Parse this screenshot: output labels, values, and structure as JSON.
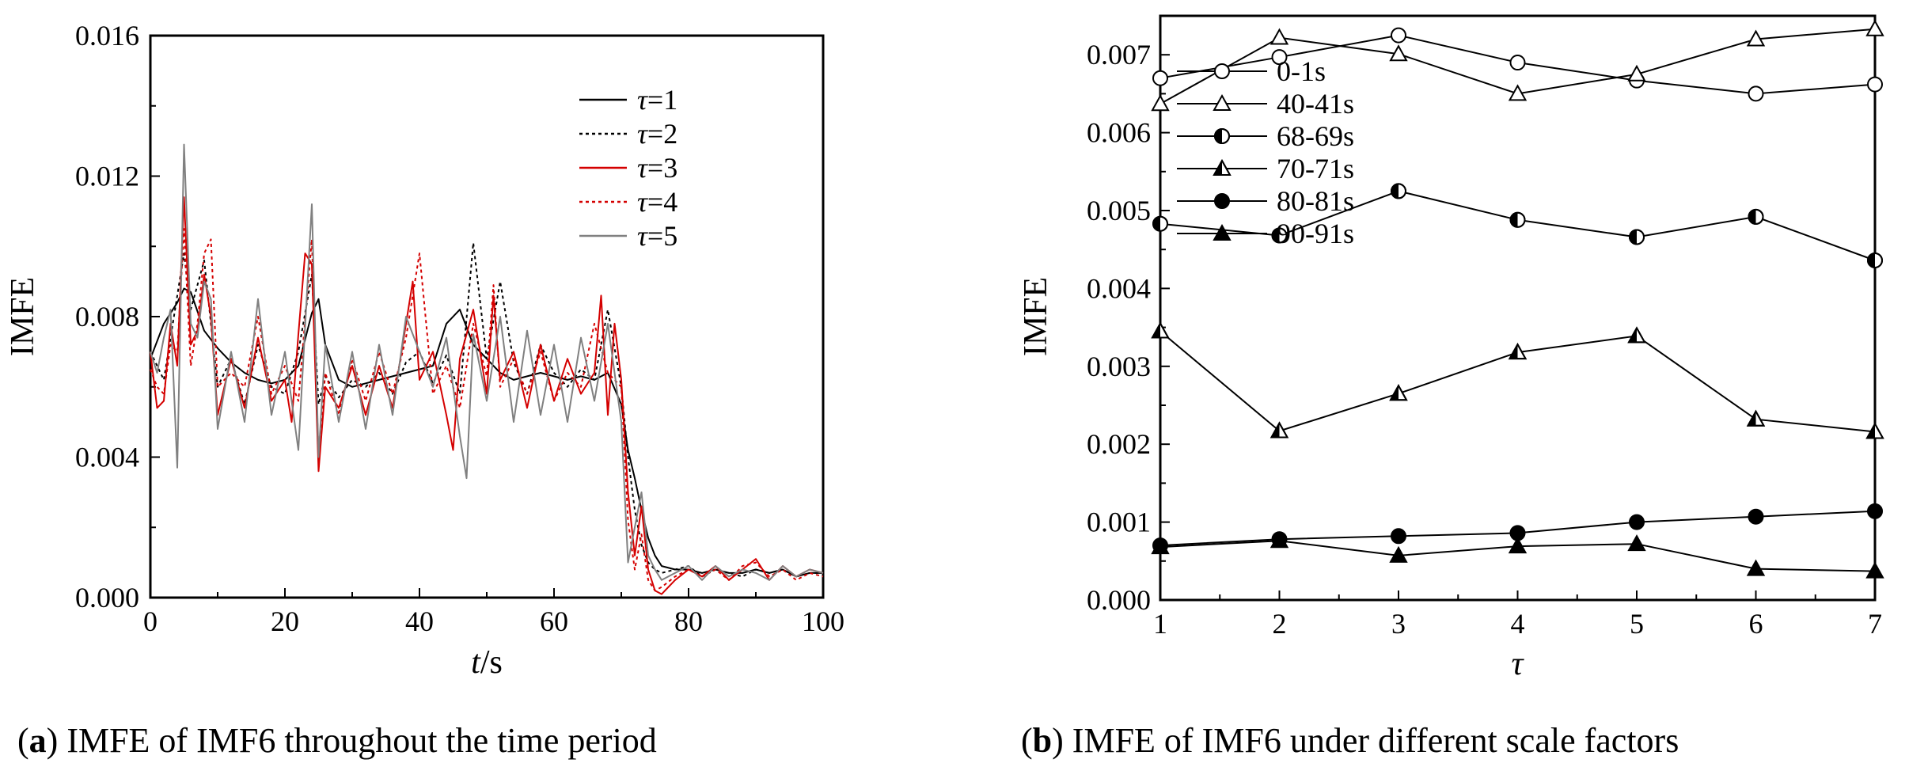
{
  "chart_data": [
    {
      "type": "line",
      "panel": "a",
      "caption_letter": "a",
      "caption_text": "IMFE of IMF6 throughout the time period",
      "ylabel": "IMFE",
      "xlabel_var": "t",
      "xlabel_unit": "/s",
      "xlim": [
        0,
        100
      ],
      "ylim": [
        0,
        0.016
      ],
      "xticks": [
        0,
        20,
        40,
        60,
        80,
        100
      ],
      "yticks": [
        0.0,
        0.004,
        0.008,
        0.012,
        0.016
      ],
      "ytick_labels": [
        "0.000",
        "0.004",
        "0.008",
        "0.012",
        "0.016"
      ],
      "legend_position": "right",
      "colors": {
        "tau1": "#000000",
        "tau2": "#000000",
        "tau3": "#d40000",
        "tau4": "#d40000",
        "tau5": "#808080"
      },
      "series": [
        {
          "name": "τ=1",
          "label_var": "τ",
          "label_val": "=1",
          "color": "#000000",
          "dash": "solid",
          "x": [
            0,
            2,
            4,
            5,
            6,
            8,
            10,
            12,
            14,
            16,
            18,
            20,
            22,
            24,
            25,
            26,
            28,
            30,
            32,
            34,
            36,
            38,
            40,
            42,
            44,
            46,
            48,
            50,
            52,
            54,
            56,
            58,
            60,
            62,
            64,
            66,
            68,
            70,
            71,
            72,
            73,
            74,
            75,
            76,
            78,
            80,
            82,
            84,
            86,
            88,
            90,
            92,
            94,
            96,
            98,
            100
          ],
          "y": [
            0.0068,
            0.0078,
            0.0084,
            0.0088,
            0.0087,
            0.0076,
            0.0071,
            0.0067,
            0.0064,
            0.0062,
            0.0061,
            0.0062,
            0.0066,
            0.0081,
            0.0085,
            0.0072,
            0.0062,
            0.006,
            0.0061,
            0.0062,
            0.0063,
            0.0064,
            0.0065,
            0.0066,
            0.0078,
            0.0082,
            0.0072,
            0.0068,
            0.0064,
            0.0062,
            0.0063,
            0.0064,
            0.0063,
            0.0062,
            0.0063,
            0.0062,
            0.0064,
            0.0055,
            0.0042,
            0.0034,
            0.0025,
            0.0017,
            0.0012,
            0.0009,
            0.0008,
            0.0008,
            0.0007,
            0.0008,
            0.0007,
            0.0007,
            0.0008,
            0.0007,
            0.0008,
            0.0006,
            0.0007,
            0.0007
          ]
        },
        {
          "name": "τ=2",
          "label_var": "τ",
          "label_val": "=2",
          "color": "#000000",
          "dash": "dotted",
          "x": [
            0,
            2,
            4,
            5,
            6,
            8,
            10,
            12,
            14,
            16,
            18,
            20,
            22,
            24,
            25,
            26,
            28,
            30,
            32,
            34,
            36,
            38,
            40,
            42,
            44,
            46,
            48,
            50,
            52,
            54,
            56,
            58,
            60,
            62,
            64,
            66,
            68,
            70,
            71,
            72,
            73,
            74,
            75,
            76,
            78,
            80,
            82,
            84,
            86,
            88,
            90,
            92,
            94,
            96,
            98,
            100
          ],
          "y": [
            0.007,
            0.0062,
            0.0086,
            0.0098,
            0.0082,
            0.0096,
            0.006,
            0.0068,
            0.0055,
            0.0072,
            0.006,
            0.0058,
            0.007,
            0.0092,
            0.0055,
            0.0063,
            0.0057,
            0.0062,
            0.006,
            0.0064,
            0.0058,
            0.0067,
            0.007,
            0.0061,
            0.0069,
            0.0058,
            0.0101,
            0.0068,
            0.009,
            0.0067,
            0.0058,
            0.0072,
            0.0064,
            0.006,
            0.0065,
            0.0062,
            0.0082,
            0.006,
            0.004,
            0.0025,
            0.0015,
            0.001,
            0.0008,
            0.0007,
            0.0008,
            0.0009,
            0.0006,
            0.0008,
            0.0007,
            0.0006,
            0.0008,
            0.0007,
            0.0008,
            0.0006,
            0.0007,
            0.0007
          ]
        },
        {
          "name": "τ=3",
          "label_var": "τ",
          "label_val": "=3",
          "color": "#d40000",
          "dash": "solid",
          "x": [
            0,
            1,
            2,
            3,
            4,
            5,
            6,
            7,
            8,
            9,
            10,
            12,
            14,
            16,
            18,
            20,
            21,
            22,
            23,
            24,
            25,
            26,
            28,
            30,
            32,
            34,
            36,
            38,
            39,
            40,
            42,
            44,
            45,
            46,
            48,
            50,
            51,
            52,
            54,
            56,
            58,
            60,
            62,
            64,
            66,
            67,
            68,
            69,
            70,
            71,
            72,
            73,
            74,
            75,
            76,
            78,
            80,
            82,
            84,
            86,
            88,
            90,
            92,
            94,
            96,
            98,
            100
          ],
          "y": [
            0.007,
            0.0054,
            0.0056,
            0.0078,
            0.0066,
            0.0114,
            0.0072,
            0.0076,
            0.0092,
            0.008,
            0.0052,
            0.0068,
            0.0054,
            0.0074,
            0.0056,
            0.0062,
            0.005,
            0.0075,
            0.0098,
            0.0095,
            0.0036,
            0.006,
            0.0054,
            0.0066,
            0.0052,
            0.0066,
            0.0054,
            0.0078,
            0.009,
            0.0062,
            0.007,
            0.0052,
            0.0042,
            0.0068,
            0.0082,
            0.0058,
            0.0086,
            0.0062,
            0.007,
            0.0054,
            0.0072,
            0.0056,
            0.0068,
            0.0058,
            0.0064,
            0.0086,
            0.0052,
            0.0078,
            0.0062,
            0.003,
            0.0012,
            0.0026,
            0.0008,
            0.0002,
            0.0001,
            0.0005,
            0.0008,
            0.0006,
            0.0009,
            0.0005,
            0.0008,
            0.0011,
            0.0005,
            0.0009,
            0.0006,
            0.0008,
            0.0007
          ]
        },
        {
          "name": "τ=4",
          "label_var": "τ",
          "label_val": "=4",
          "color": "#d40000",
          "dash": "dotted",
          "x": [
            0,
            1,
            2,
            3,
            4,
            5,
            6,
            7,
            8,
            9,
            10,
            12,
            14,
            16,
            18,
            20,
            22,
            24,
            25,
            26,
            28,
            30,
            32,
            34,
            36,
            38,
            40,
            42,
            44,
            46,
            48,
            50,
            51,
            52,
            54,
            56,
            58,
            60,
            62,
            64,
            66,
            68,
            70,
            71,
            72,
            73,
            74,
            75,
            76,
            78,
            80,
            82,
            84,
            86,
            88,
            90,
            92,
            94,
            96,
            98,
            100
          ],
          "y": [
            0.0065,
            0.006,
            0.0058,
            0.0072,
            0.007,
            0.0105,
            0.0066,
            0.0078,
            0.0098,
            0.0102,
            0.006,
            0.0064,
            0.006,
            0.008,
            0.0058,
            0.0066,
            0.0056,
            0.0102,
            0.004,
            0.0064,
            0.0052,
            0.0068,
            0.0056,
            0.007,
            0.0058,
            0.0074,
            0.0098,
            0.0058,
            0.0066,
            0.0054,
            0.0078,
            0.0063,
            0.0089,
            0.006,
            0.0068,
            0.0058,
            0.007,
            0.0056,
            0.0064,
            0.006,
            0.0078,
            0.0064,
            0.006,
            0.0022,
            0.0008,
            0.0018,
            0.0005,
            0.0002,
            0.0003,
            0.0006,
            0.0008,
            0.0006,
            0.0008,
            0.0005,
            0.0009,
            0.001,
            0.0006,
            0.0008,
            0.0005,
            0.0007,
            0.0006
          ]
        },
        {
          "name": "τ=5",
          "label_var": "τ",
          "label_val": "=5",
          "color": "#808080",
          "dash": "solid",
          "x": [
            0,
            1,
            2,
            3,
            4,
            5,
            6,
            7,
            8,
            9,
            10,
            12,
            14,
            16,
            18,
            20,
            22,
            24,
            25,
            26,
            28,
            30,
            32,
            34,
            36,
            38,
            40,
            42,
            44,
            46,
            47,
            48,
            50,
            52,
            54,
            56,
            58,
            60,
            62,
            64,
            66,
            68,
            70,
            71,
            72,
            73,
            74,
            75,
            76,
            78,
            80,
            82,
            84,
            86,
            88,
            90,
            92,
            94,
            96,
            98,
            100
          ],
          "y": [
            0.007,
            0.0064,
            0.0074,
            0.0082,
            0.0037,
            0.0129,
            0.0078,
            0.0074,
            0.009,
            0.0085,
            0.0048,
            0.007,
            0.005,
            0.0085,
            0.0052,
            0.007,
            0.0042,
            0.0112,
            0.004,
            0.0072,
            0.005,
            0.007,
            0.0048,
            0.0072,
            0.0052,
            0.008,
            0.007,
            0.006,
            0.0074,
            0.0046,
            0.0034,
            0.0075,
            0.0056,
            0.008,
            0.005,
            0.0076,
            0.0052,
            0.0072,
            0.005,
            0.0074,
            0.0056,
            0.0078,
            0.005,
            0.001,
            0.002,
            0.003,
            0.0012,
            0.0008,
            0.0005,
            0.0007,
            0.0009,
            0.0005,
            0.0009,
            0.0006,
            0.0008,
            0.0007,
            0.0005,
            0.0009,
            0.0006,
            0.0008,
            0.0007
          ]
        }
      ]
    },
    {
      "type": "line",
      "panel": "b",
      "caption_letter": "b",
      "caption_text": "IMFE of IMF6 under different scale factors",
      "ylabel": "IMFE",
      "xlabel": "τ",
      "xlim": [
        1,
        7
      ],
      "ylim": [
        0,
        0.0075
      ],
      "xticks": [
        1,
        2,
        3,
        4,
        5,
        6,
        7
      ],
      "yticks": [
        0.0,
        0.001,
        0.002,
        0.003,
        0.004,
        0.005,
        0.006,
        0.007
      ],
      "ytick_labels": [
        "0.000",
        "0.001",
        "0.002",
        "0.003",
        "0.004",
        "0.005",
        "0.006",
        "0.007"
      ],
      "legend_position": "upper-left",
      "categories": [
        1,
        2,
        3,
        4,
        5,
        6,
        7
      ],
      "series": [
        {
          "name": "0-1s",
          "marker": "circle-open",
          "values": [
            0.0067,
            0.00697,
            0.00725,
            0.0069,
            0.00667,
            0.0065,
            0.00662
          ]
        },
        {
          "name": "40-41s",
          "marker": "triangle-open",
          "values": [
            0.00637,
            0.00722,
            0.00701,
            0.0065,
            0.00675,
            0.0072,
            0.00733
          ]
        },
        {
          "name": "68-69s",
          "marker": "circle-half",
          "values": [
            0.00483,
            0.00468,
            0.00525,
            0.00488,
            0.00466,
            0.00492,
            0.00436
          ]
        },
        {
          "name": "70-71s",
          "marker": "triangle-half",
          "values": [
            0.00345,
            0.00217,
            0.00265,
            0.00318,
            0.00339,
            0.00232,
            0.00216
          ]
        },
        {
          "name": "80-81s",
          "marker": "circle-filled",
          "values": [
            0.0007,
            0.00078,
            0.00082,
            0.00086,
            0.001,
            0.00107,
            0.00114
          ]
        },
        {
          "name": "90-91s",
          "marker": "triangle-filled",
          "values": [
            0.00068,
            0.00076,
            0.00057,
            0.00069,
            0.00072,
            0.0004,
            0.00037
          ]
        }
      ]
    }
  ]
}
